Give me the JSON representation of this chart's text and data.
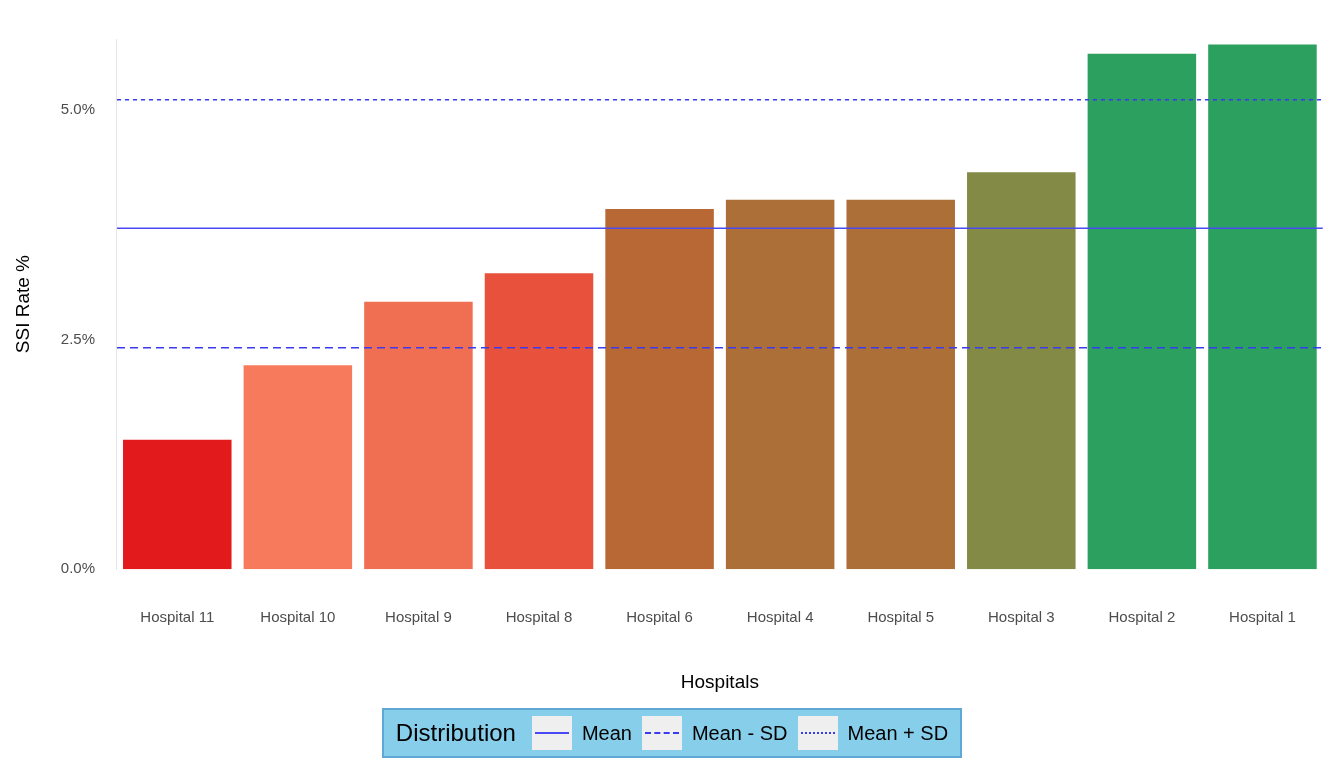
{
  "chart_data": {
    "type": "bar",
    "xlabel": "Hospitals",
    "ylabel": "SSI Rate %",
    "legend_title": "Distribution",
    "legend": "bottom",
    "grid": false,
    "categories": [
      "Hospital 11",
      "Hospital 10",
      "Hospital 9",
      "Hospital 8",
      "Hospital 6",
      "Hospital 4",
      "Hospital 5",
      "Hospital 3",
      "Hospital 2",
      "Hospital 1"
    ],
    "values": [
      1.41,
      2.22,
      2.91,
      3.22,
      3.92,
      4.02,
      4.02,
      4.32,
      5.61,
      5.71
    ],
    "colors": [
      "#e31a1c",
      "#f87a5c",
      "#f06e52",
      "#e8523d",
      "#b86835",
      "#ad6f38",
      "#ad6f38",
      "#838a45",
      "#2ca05e",
      "#2ca05e"
    ],
    "ylim": [
      0,
      5.77
    ],
    "yticks": [
      {
        "value": 0,
        "label": "0.0%"
      },
      {
        "value": 2.5,
        "label": "2.5%"
      },
      {
        "value": 5,
        "label": "5.0%"
      }
    ],
    "ref_lines": [
      {
        "axis": "y",
        "value": 3.71,
        "label": "Mean",
        "color": "#4a4af5",
        "line_style": "solid"
      },
      {
        "axis": "y",
        "value": 2.41,
        "label": "Mean - SD",
        "color": "#3a3af0",
        "line_style": "dashed"
      },
      {
        "axis": "y",
        "value": 5.11,
        "label": "Mean + SD",
        "color": "#3a3af0",
        "line_style": "dotted"
      }
    ]
  }
}
